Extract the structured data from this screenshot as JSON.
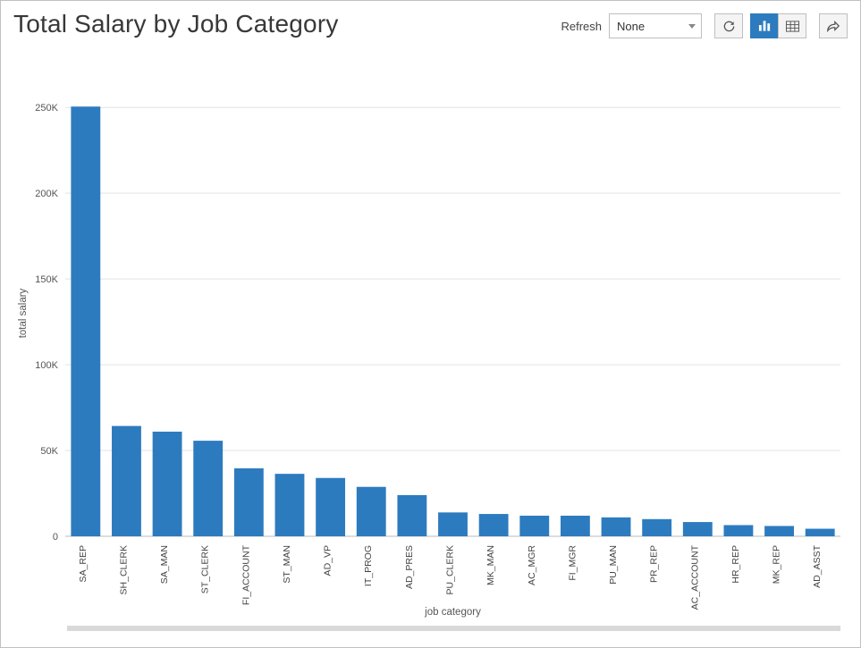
{
  "title": "Total Salary by Job Category",
  "toolbar": {
    "refresh_label": "Refresh",
    "refresh_select_value": "None"
  },
  "chart": {
    "type": "bar",
    "xlabel": "job category",
    "ylabel": "total salary",
    "background_color": "#ffffff",
    "grid_color": "#e3e3e3",
    "baseline_color": "#bbbbbb",
    "bar_color": "#2d7bbf",
    "bar_width_ratio": 0.72,
    "ylim": [
      0,
      260000
    ],
    "ytick_step": 50000,
    "yticks": [
      {
        "v": 0,
        "label": "0"
      },
      {
        "v": 50000,
        "label": "50K"
      },
      {
        "v": 100000,
        "label": "100K"
      },
      {
        "v": 150000,
        "label": "150K"
      },
      {
        "v": 200000,
        "label": "200K"
      },
      {
        "v": 250000,
        "label": "250K"
      }
    ],
    "axis_font_size": 11,
    "label_font_size": 11.5,
    "categories": [
      "SA_REP",
      "SH_CLERK",
      "SA_MAN",
      "ST_CLERK",
      "FI_ACCOUNT",
      "ST_MAN",
      "AD_VP",
      "IT_PROG",
      "AD_PRES",
      "PU_CLERK",
      "MK_MAN",
      "AC_MGR",
      "FI_MGR",
      "PU_MAN",
      "PR_REP",
      "AC_ACCOUNT",
      "HR_REP",
      "MK_REP",
      "AD_ASST"
    ],
    "values": [
      250500,
      64300,
      61000,
      55700,
      39600,
      36400,
      34000,
      28800,
      24000,
      13900,
      13000,
      12000,
      12000,
      11000,
      10000,
      8300,
      6500,
      6000,
      4400
    ]
  }
}
